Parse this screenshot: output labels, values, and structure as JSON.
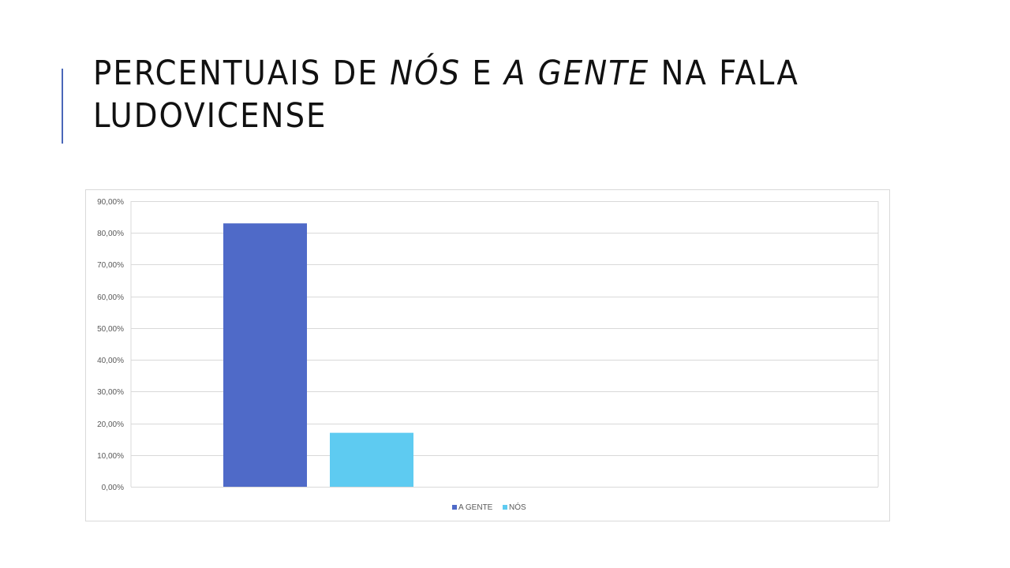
{
  "slide": {
    "title_parts": [
      {
        "text": "PERCENTUAIS DE ",
        "italic": false
      },
      {
        "text": "NÓS",
        "italic": true
      },
      {
        "text": " E ",
        "italic": false
      },
      {
        "text": "A GENTE",
        "italic": true
      },
      {
        "text": " NA FALA LUDOVICENSE",
        "italic": false
      }
    ],
    "accent_color": "#4a67b8"
  },
  "chart_data": {
    "type": "bar",
    "title": "",
    "xlabel": "",
    "ylabel": "",
    "ylim": [
      0,
      90
    ],
    "y_ticks": [
      0,
      10,
      20,
      30,
      40,
      50,
      60,
      70,
      80,
      90
    ],
    "y_tick_labels": [
      "0,00%",
      "10,00%",
      "20,00%",
      "30,00%",
      "40,00%",
      "50,00%",
      "60,00%",
      "70,00%",
      "80,00%",
      "90,00%"
    ],
    "grid": true,
    "legend_position": "bottom",
    "series": [
      {
        "name": "A GENTE",
        "value": 83,
        "color": "#4f6ac8"
      },
      {
        "name": "NÓS",
        "value": 17,
        "color": "#5ecbf1"
      }
    ]
  }
}
